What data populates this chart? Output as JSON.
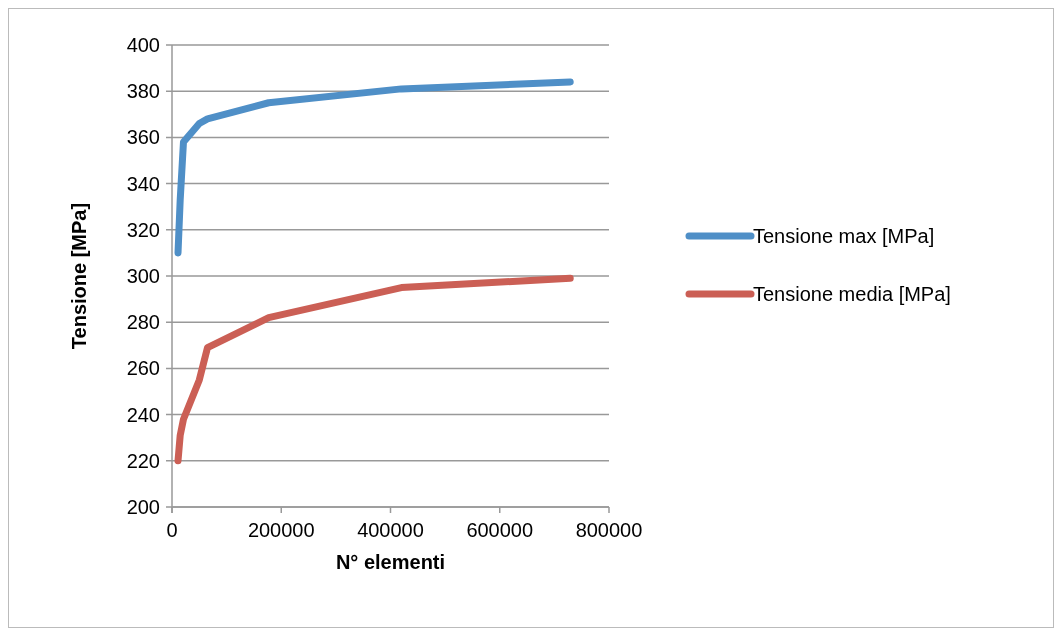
{
  "chart_data": {
    "type": "line",
    "xlabel": "N° elementi",
    "ylabel": "Tensione [MPa]",
    "x": [
      11000,
      15000,
      21000,
      50000,
      65000,
      177000,
      420000,
      729000
    ],
    "series": [
      {
        "name": "Tensione max [MPa]",
        "color": "#4f8fc7",
        "values": [
          310,
          333,
          358,
          366,
          368,
          375,
          381,
          384
        ]
      },
      {
        "name": "Tensione media [MPa]",
        "color": "#cb5f55",
        "values": [
          220,
          231,
          238,
          255,
          269,
          282,
          295,
          299
        ]
      }
    ],
    "xlim": [
      0,
      800000
    ],
    "xticks": [
      0,
      200000,
      400000,
      600000,
      800000
    ],
    "ylim": [
      200,
      400
    ],
    "yticks": [
      200,
      220,
      240,
      260,
      280,
      300,
      320,
      340,
      360,
      380,
      400
    ],
    "grid": "y",
    "legend": "right",
    "marker": "none",
    "line_style": "solid"
  }
}
